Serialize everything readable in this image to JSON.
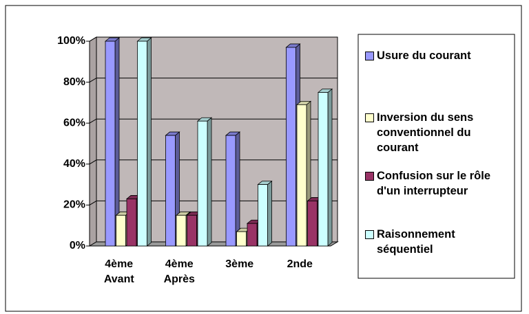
{
  "chart_data": {
    "type": "bar3d",
    "categories": [
      "4ème Avant",
      "4ème Après",
      "3ème",
      "2nde"
    ],
    "series": [
      {
        "name": "Usure du courant",
        "color": "#9999ff",
        "values": [
          100,
          54,
          54,
          97
        ]
      },
      {
        "name": "Inversion du sens conventionnel du courant",
        "color": "#ffffcc",
        "values": [
          15,
          15,
          7,
          69
        ]
      },
      {
        "name": "Confusion sur le rôle d'un interrupteur",
        "color": "#993366",
        "values": [
          23,
          15,
          11,
          22
        ]
      },
      {
        "name": "Raisonnement séquentiel",
        "color": "#ccffff",
        "values": [
          100,
          61,
          30,
          75
        ]
      }
    ],
    "ylim": [
      0,
      100
    ],
    "yticks": [
      {
        "value": 0,
        "label": "0%"
      },
      {
        "value": 20,
        "label": "20%"
      },
      {
        "value": 40,
        "label": "40%"
      },
      {
        "value": 60,
        "label": "60%"
      },
      {
        "value": 80,
        "label": "80%"
      },
      {
        "value": 100,
        "label": "100%"
      }
    ],
    "grid": true,
    "legend": "right"
  }
}
